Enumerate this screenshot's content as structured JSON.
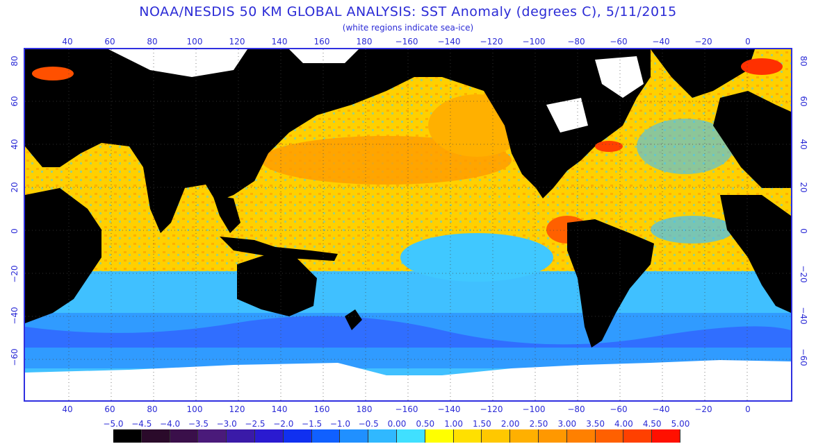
{
  "title": "NOAA/NESDIS 50 KM GLOBAL ANALYSIS: SST Anomaly (degrees C), 5/11/2015",
  "subtitle": "(white regions indicate sea-ice)",
  "axes": {
    "top_labels": [
      "40",
      "60",
      "80",
      "100",
      "120",
      "140",
      "160",
      "180",
      "−160",
      "−140",
      "−120",
      "−100",
      "−80",
      "−60",
      "−40",
      "−20",
      "0"
    ],
    "bottom_labels": [
      "40",
      "60",
      "80",
      "100",
      "120",
      "140",
      "160",
      "180",
      "−160",
      "−140",
      "−120",
      "−100",
      "−80",
      "−60",
      "−40",
      "−20",
      "0"
    ],
    "left_labels": [
      "80",
      "60",
      "40",
      "20",
      "0",
      "−20",
      "−40",
      "−60"
    ],
    "right_labels": [
      "80",
      "60",
      "40",
      "20",
      "0",
      "−20",
      "−40",
      "−60"
    ]
  },
  "colorbar": {
    "labels": [
      "−5.0",
      "−4.5",
      "−4.0",
      "−3.5",
      "−3.0",
      "−2.5",
      "−2.0",
      "−1.5",
      "−1.0",
      "−0.5",
      "0.00",
      "0.50",
      "1.00",
      "1.50",
      "2.00",
      "2.50",
      "3.00",
      "3.50",
      "4.00",
      "4.50",
      "5.00"
    ],
    "colors": [
      "#000000",
      "#2a0a2a",
      "#3a0f4a",
      "#4a1a7a",
      "#3a1aa8",
      "#2a1ad0",
      "#1030f0",
      "#1060ff",
      "#2090ff",
      "#30b8ff",
      "#40e0ff",
      "#ffff00",
      "#ffe000",
      "#ffc800",
      "#ffb000",
      "#ff9800",
      "#ff8000",
      "#ff6000",
      "#ff4000",
      "#ff1000"
    ]
  },
  "colors": {
    "text": "#2b2bd6",
    "land": "#000000",
    "ice": "#ffffff",
    "ocean_warm": "#ffc000",
    "ocean_cool": "#40c0ff"
  }
}
